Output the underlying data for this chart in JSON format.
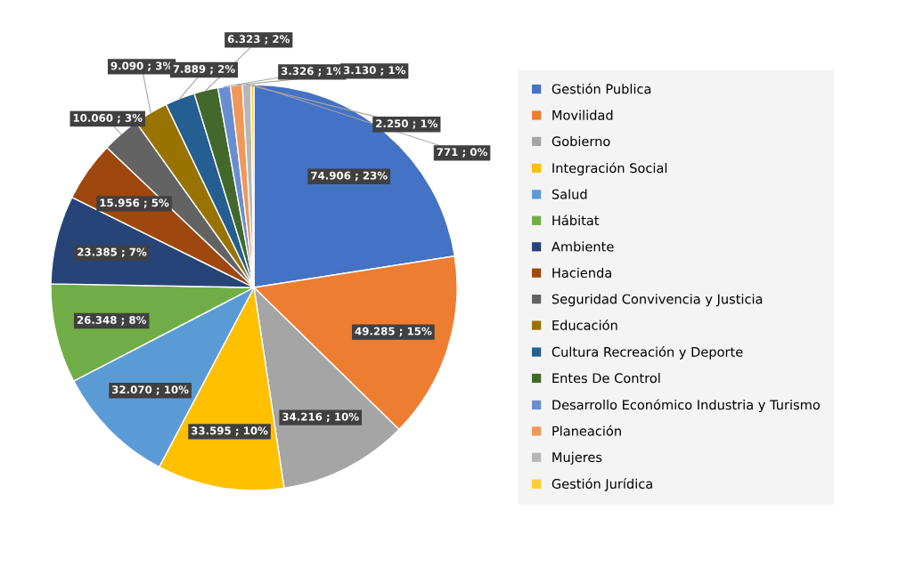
{
  "chart_data": {
    "type": "pie",
    "categories": [
      "Gestión Publica",
      "Movilidad",
      "Gobierno",
      "Integración Social",
      "Salud",
      "Hábitat",
      "Ambiente",
      "Hacienda",
      "Seguridad Convivencia y Justicia",
      "Educación",
      "Cultura Recreación y Deporte",
      "Entes De Control",
      "Desarrollo Económico Industria y Turismo",
      "Planeación",
      "Mujeres",
      "Gestión Jurídica"
    ],
    "values": [
      74906,
      49285,
      34216,
      33595,
      32070,
      26348,
      23385,
      15956,
      10060,
      9090,
      7889,
      6323,
      3326,
      3130,
      2250,
      771
    ],
    "value_labels": [
      "74.906 ; 23%",
      "49.285 ; 15%",
      "34.216 ; 10%",
      "33.595 ; 10%",
      "32.070 ; 10%",
      "26.348 ; 8%",
      "23.385 ; 7%",
      "15.956 ; 5%",
      "10.060 ; 3%",
      "9.090 ; 3%",
      "7.889 ; 2%",
      "6.323 ; 2%",
      "3.326 ; 1%",
      "3.130 ; 1%",
      "2.250 ; 1%",
      "771 ; 0%"
    ],
    "colors": [
      "#4472c4",
      "#ed7d31",
      "#a5a5a5",
      "#ffc000",
      "#5b9bd5",
      "#70ad47",
      "#264478",
      "#9e480e",
      "#636363",
      "#997300",
      "#255e91",
      "#43682b",
      "#698ed0",
      "#f1975a",
      "#b7b7b7",
      "#ffcd33"
    ],
    "legend": "right"
  }
}
